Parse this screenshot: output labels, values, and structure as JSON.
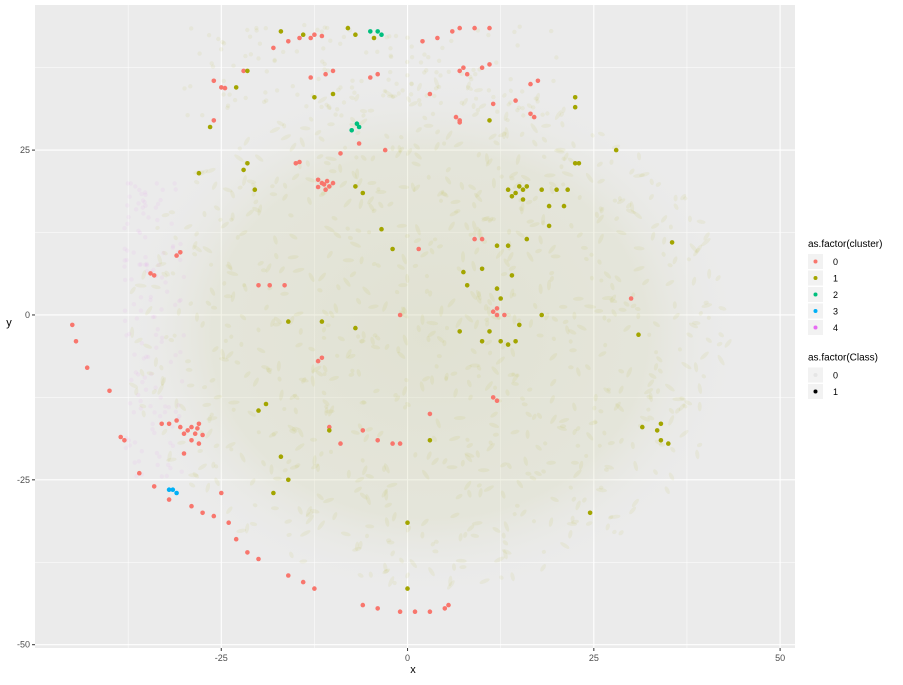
{
  "chart_data": {
    "type": "scatter",
    "xlabel": "x",
    "ylabel": "y",
    "xlim": [
      -50,
      52
    ],
    "ylim": [
      -50.5,
      47
    ],
    "x_ticks": [
      -25,
      0,
      25,
      50
    ],
    "y_ticks": [
      -50,
      -25,
      0,
      25
    ],
    "x_tick_labels": [
      "-25",
      "0",
      "25",
      "50"
    ],
    "y_tick_labels": [
      "-50",
      "-25",
      "0",
      "25"
    ],
    "grid": true,
    "background": "#ebebeb",
    "cluster_colors": {
      "0": "#F8766D",
      "1": "#A3A500",
      "2": "#00BF7D",
      "3": "#00B0F6",
      "4": "#E76BF3"
    },
    "legends": [
      {
        "title": "as.factor(cluster)",
        "entries": [
          {
            "label": "0",
            "color": "#F8766D"
          },
          {
            "label": "1",
            "color": "#A3A500"
          },
          {
            "label": "2",
            "color": "#00BF7D"
          },
          {
            "label": "3",
            "color": "#00B0F6"
          },
          {
            "label": "4",
            "color": "#E76BF3"
          }
        ]
      },
      {
        "title": "as.factor(Class)",
        "entries": [
          {
            "label": "0",
            "opacity": 0.05
          },
          {
            "label": "1",
            "opacity": 1
          }
        ]
      }
    ],
    "background_cloud": {
      "class": 0,
      "center": [
        3,
        -3
      ],
      "radius_x": 42,
      "radius_y": 40,
      "note_bands": [
        {
          "cluster": 1,
          "x": [
            -30,
            20
          ],
          "y": [
            30,
            44
          ]
        },
        {
          "cluster": 4,
          "x": [
            -38,
            -30
          ],
          "y": [
            -25,
            20
          ]
        }
      ]
    },
    "series": [
      {
        "cluster": "0",
        "class": "1",
        "points": [
          [
            -11.5,
            20
          ],
          [
            -10.5,
            19.5
          ],
          [
            -11,
            19
          ],
          [
            -12,
            20.5
          ],
          [
            -10,
            20
          ],
          [
            -11.2,
            19.8
          ],
          [
            -10.8,
            20.3
          ],
          [
            -12,
            19.4
          ],
          [
            -29,
            -17
          ],
          [
            -28.5,
            -18
          ],
          [
            -29.5,
            -17.5
          ],
          [
            -28,
            -16.5
          ],
          [
            -30,
            -18
          ],
          [
            -29,
            -19
          ],
          [
            -28,
            -19.5
          ],
          [
            -30.5,
            -17
          ],
          [
            -31,
            -16
          ],
          [
            -32,
            -16.5
          ],
          [
            -33,
            -16.5
          ],
          [
            -27.5,
            -18.2
          ],
          [
            -28.2,
            -17.2
          ],
          [
            -45,
            -1.5
          ],
          [
            -44.5,
            -4
          ],
          [
            -43,
            -8
          ],
          [
            -40,
            -11.5
          ],
          [
            -38.5,
            -18.5
          ],
          [
            -38,
            -19
          ],
          [
            -36,
            -24
          ],
          [
            -34,
            -26
          ],
          [
            -32,
            -28
          ],
          [
            -29,
            -29
          ],
          [
            -27.5,
            -30
          ],
          [
            -26,
            -30.5
          ],
          [
            -24,
            -31.5
          ],
          [
            -23,
            -34
          ],
          [
            -21.5,
            -36
          ],
          [
            -20,
            -37
          ],
          [
            -16,
            -39.5
          ],
          [
            -14,
            -40.5
          ],
          [
            -12.5,
            -41.5
          ],
          [
            -6,
            -44
          ],
          [
            -4,
            -44.5
          ],
          [
            -1,
            -45
          ],
          [
            1,
            -45
          ],
          [
            3,
            -45
          ],
          [
            5,
            -44.5
          ],
          [
            5.5,
            -44
          ],
          [
            -34,
            6
          ],
          [
            -31,
            9
          ],
          [
            -30.5,
            9.5
          ],
          [
            -20,
            4.5
          ],
          [
            -18.5,
            4.5
          ],
          [
            -16.5,
            4.5
          ],
          [
            -18,
            40.5
          ],
          [
            -14.5,
            42
          ],
          [
            -16,
            41.5
          ],
          [
            -26,
            35.5
          ],
          [
            -25,
            34.5
          ],
          [
            -24.5,
            34.4
          ],
          [
            -22,
            37
          ],
          [
            -9,
            24.5
          ],
          [
            -6.5,
            26
          ],
          [
            -13,
            42
          ],
          [
            -12.5,
            42.5
          ],
          [
            -11.5,
            42.3
          ],
          [
            -15,
            23
          ],
          [
            -14.5,
            23.2
          ],
          [
            -26,
            29.5
          ],
          [
            -30,
            -21
          ],
          [
            -25,
            -27
          ],
          [
            -12,
            -7
          ],
          [
            -11.5,
            -6.5
          ],
          [
            -10.5,
            -17
          ],
          [
            -9,
            -19.5
          ],
          [
            -6,
            -17.5
          ],
          [
            -4,
            -19
          ],
          [
            -2,
            -19.5
          ],
          [
            -1,
            -19.5
          ],
          [
            -4,
            36.5
          ],
          [
            -5,
            36
          ],
          [
            -10,
            37
          ],
          [
            -11,
            36.5
          ],
          [
            -13,
            36
          ],
          [
            -3,
            25
          ],
          [
            2,
            41.5
          ],
          [
            4,
            42
          ],
          [
            6,
            43
          ],
          [
            7,
            43.5
          ],
          [
            9,
            43.5
          ],
          [
            11,
            43.5
          ],
          [
            7,
            37
          ],
          [
            8,
            36.5
          ],
          [
            7.5,
            37.5
          ],
          [
            11,
            38
          ],
          [
            10,
            37.5
          ],
          [
            3,
            33.5
          ],
          [
            7,
            29.5
          ],
          [
            6.5,
            30
          ],
          [
            7,
            29.2
          ],
          [
            11.5,
            32
          ],
          [
            14.5,
            32.5
          ],
          [
            16.5,
            30.5
          ],
          [
            17.5,
            35.5
          ],
          [
            16.5,
            35
          ],
          [
            17,
            30
          ],
          [
            9,
            11.5
          ],
          [
            10,
            11.5
          ],
          [
            12,
            0
          ],
          [
            11.5,
            0.5
          ],
          [
            12,
            1
          ],
          [
            11.5,
            -12.5
          ],
          [
            12,
            -13
          ],
          [
            13,
            0
          ],
          [
            3,
            -15
          ],
          [
            1.5,
            10
          ],
          [
            -1,
            0
          ],
          [
            30,
            2.5
          ],
          [
            -34.5,
            6.3
          ]
        ]
      },
      {
        "cluster": "1",
        "class": "1",
        "points": [
          [
            -4.5,
            42
          ],
          [
            -7,
            42.5
          ],
          [
            -8,
            43.5
          ],
          [
            -14,
            42.5
          ],
          [
            -17,
            43
          ],
          [
            -23,
            34.5
          ],
          [
            -21.5,
            37
          ],
          [
            -26.5,
            28.5
          ],
          [
            -28,
            21.5
          ],
          [
            -22,
            22
          ],
          [
            -21.5,
            23
          ],
          [
            -20.5,
            19
          ],
          [
            -6,
            18.5
          ],
          [
            -7,
            19.5
          ],
          [
            -12.5,
            33
          ],
          [
            -10,
            33.5
          ],
          [
            -3.5,
            13
          ],
          [
            -2,
            10
          ],
          [
            14,
            18
          ],
          [
            15,
            19.5
          ],
          [
            14.5,
            18.5
          ],
          [
            15.5,
            19
          ],
          [
            16,
            19.5
          ],
          [
            13.5,
            19
          ],
          [
            15.5,
            17.5
          ],
          [
            18,
            19
          ],
          [
            19,
            16.5
          ],
          [
            20,
            19
          ],
          [
            22.5,
            23
          ],
          [
            21,
            16.5
          ],
          [
            19,
            13.5
          ],
          [
            16,
            11.5
          ],
          [
            13.5,
            10.5
          ],
          [
            12,
            10.5
          ],
          [
            10,
            7
          ],
          [
            7.5,
            6.5
          ],
          [
            8,
            4.5
          ],
          [
            12,
            4
          ],
          [
            12.5,
            2.5
          ],
          [
            14,
            6
          ],
          [
            18,
            0
          ],
          [
            15,
            -1.5
          ],
          [
            14.5,
            -4
          ],
          [
            13.5,
            -4.5
          ],
          [
            12.5,
            -4
          ],
          [
            10,
            -4
          ],
          [
            11,
            -2.5
          ],
          [
            7,
            -2.5
          ],
          [
            28,
            25
          ],
          [
            22.5,
            33
          ],
          [
            22.5,
            31.5
          ],
          [
            35.5,
            11
          ],
          [
            31,
            -3
          ],
          [
            31.5,
            -17
          ],
          [
            33.5,
            -17.5
          ],
          [
            34,
            -16.5
          ],
          [
            11,
            29.5
          ],
          [
            21.5,
            19
          ],
          [
            23,
            23
          ],
          [
            -10.5,
            -17.5
          ],
          [
            -11.5,
            -1
          ],
          [
            -7,
            -2
          ],
          [
            -16,
            -1
          ],
          [
            -17,
            -21.5
          ],
          [
            -16,
            -25
          ],
          [
            -20,
            -14.5
          ],
          [
            -18,
            -27
          ],
          [
            0,
            -31.5
          ],
          [
            0,
            -41.5
          ],
          [
            3,
            -19
          ],
          [
            -19,
            -13.5
          ],
          [
            35,
            -19.5
          ],
          [
            34,
            -19
          ],
          [
            24.5,
            -30
          ]
        ]
      },
      {
        "cluster": "2",
        "class": "1",
        "points": [
          [
            -3.5,
            42.5
          ],
          [
            -6.5,
            28.5
          ],
          [
            -7.5,
            28
          ],
          [
            -6.8,
            29
          ],
          [
            -4,
            43
          ],
          [
            -5,
            43
          ]
        ]
      },
      {
        "cluster": "3",
        "class": "1",
        "points": [
          [
            -31.5,
            -26.5
          ],
          [
            -31,
            -27
          ],
          [
            -32,
            -26.5
          ]
        ]
      }
    ]
  }
}
